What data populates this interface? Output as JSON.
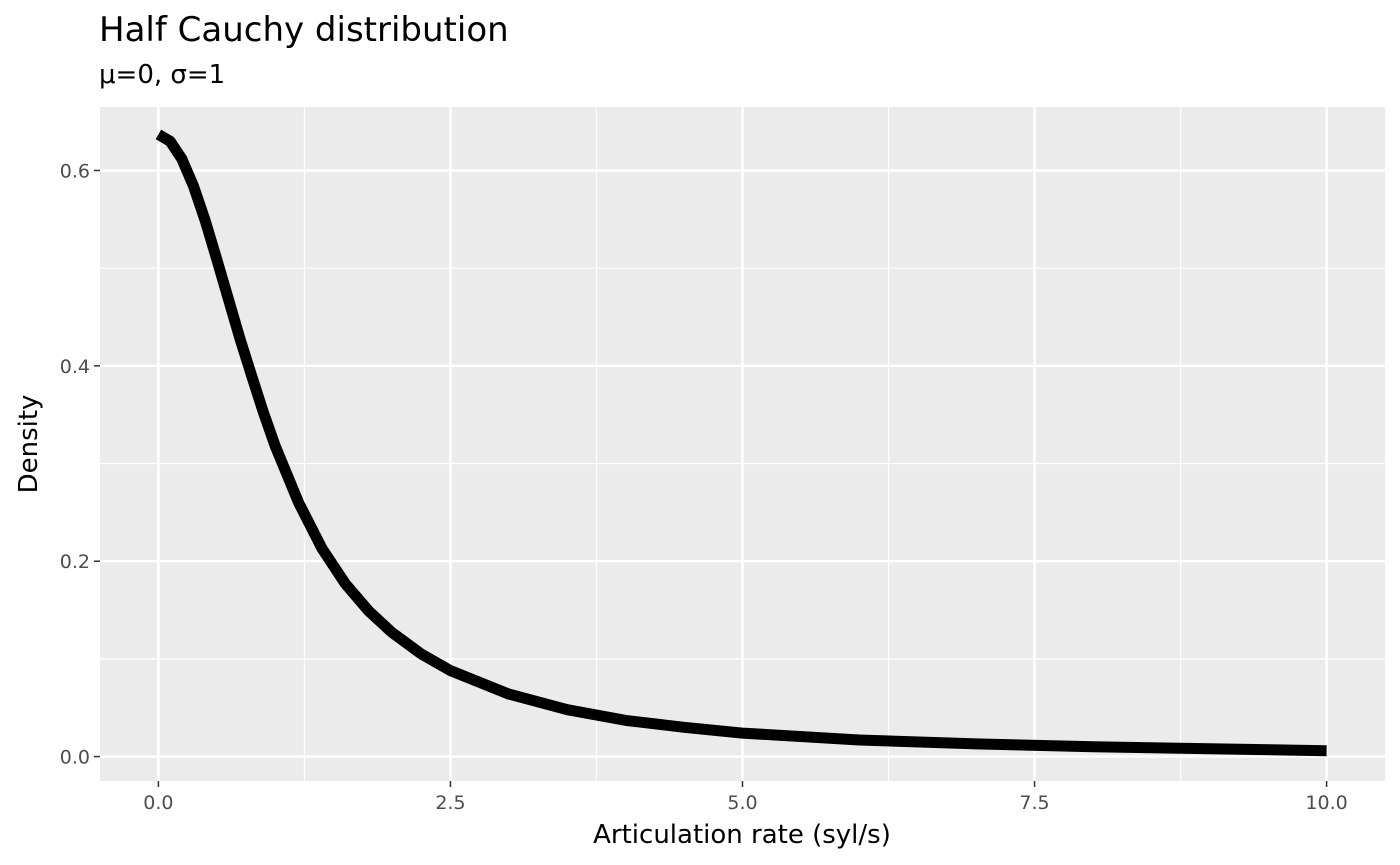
{
  "chart_data": {
    "type": "line",
    "title": "Half Cauchy distribution",
    "subtitle": "μ=0, σ=1",
    "xlabel": "Articulation rate (syl/s)",
    "ylabel": "Density",
    "xlim": [
      -0.5,
      10.5
    ],
    "ylim": [
      -0.025,
      0.665
    ],
    "x_ticks": [
      0,
      2.5,
      5,
      7.5,
      10
    ],
    "x_tick_labels": [
      "0.0",
      "2.5",
      "5.0",
      "7.5",
      "10.0"
    ],
    "y_ticks": [
      0,
      0.2,
      0.4,
      0.6
    ],
    "y_tick_labels": [
      "0.0",
      "0.2",
      "0.4",
      "0.6"
    ],
    "grid": true,
    "series": [
      {
        "x": [
          0,
          0.1,
          0.2,
          0.3,
          0.4,
          0.5,
          0.6,
          0.7,
          0.8,
          0.9,
          1.0,
          1.2,
          1.4,
          1.6,
          1.8,
          2.0,
          2.25,
          2.5,
          3.0,
          3.5,
          4.0,
          4.5,
          5.0,
          6.0,
          7.0,
          8.0,
          9.0,
          10.0
        ],
        "values": [
          0.637,
          0.63,
          0.612,
          0.584,
          0.549,
          0.509,
          0.468,
          0.427,
          0.389,
          0.352,
          0.318,
          0.26,
          0.213,
          0.177,
          0.149,
          0.127,
          0.105,
          0.088,
          0.064,
          0.048,
          0.037,
          0.03,
          0.024,
          0.017,
          0.013,
          0.01,
          0.008,
          0.006
        ],
        "color": "#000000"
      }
    ],
    "colors": {
      "panel_background": "#ebebeb",
      "grid_line": "#ffffff",
      "line": "#000000"
    }
  }
}
